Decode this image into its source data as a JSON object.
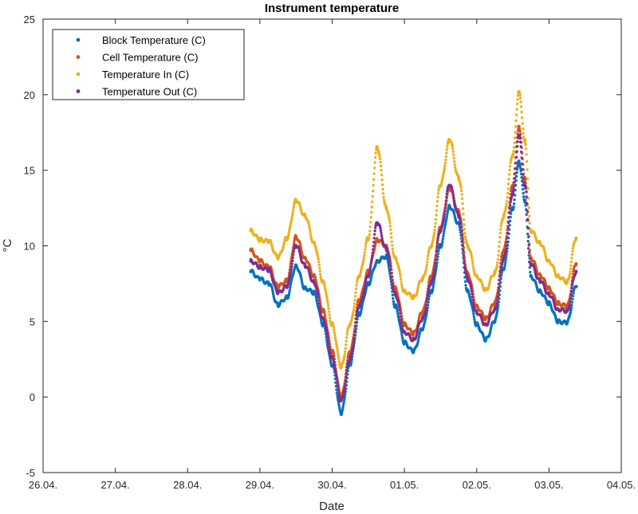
{
  "chart_data": {
    "type": "scatter",
    "title": "Instrument temperature",
    "xlabel": "Date",
    "ylabel": "°C",
    "xlim": [
      "2017-04-26",
      "2017-05-04"
    ],
    "ylim": [
      -5,
      25
    ],
    "x_ticks": [
      {
        "date": "2017-04-26",
        "label": "26.04."
      },
      {
        "date": "2017-04-27",
        "label": "27.04."
      },
      {
        "date": "2017-04-28",
        "label": "28.04."
      },
      {
        "date": "2017-04-29",
        "label": "29.04."
      },
      {
        "date": "2017-04-30",
        "label": "30.04."
      },
      {
        "date": "2017-05-01",
        "label": "01.05."
      },
      {
        "date": "2017-05-02",
        "label": "02.05."
      },
      {
        "date": "2017-05-03",
        "label": "03.05."
      },
      {
        "date": "2017-05-04",
        "label": "04.05."
      }
    ],
    "y_ticks": [
      -5,
      0,
      5,
      10,
      15,
      20,
      25
    ],
    "grid": false,
    "legend_position": "top-left",
    "series": [
      {
        "name": "Block Temperature (C)",
        "color": "#0072BD",
        "points": [
          [
            "2017-04-28 21:00",
            8.3
          ],
          [
            "2017-04-29 00:00",
            7.8
          ],
          [
            "2017-04-29 03:00",
            7.5
          ],
          [
            "2017-04-29 06:00",
            6.1
          ],
          [
            "2017-04-29 09:00",
            6.6
          ],
          [
            "2017-04-29 12:00",
            8.7
          ],
          [
            "2017-04-29 15:00",
            7.2
          ],
          [
            "2017-04-29 18:00",
            6.9
          ],
          [
            "2017-04-29 21:00",
            4.8
          ],
          [
            "2017-04-30 00:00",
            2.1
          ],
          [
            "2017-04-30 03:00",
            -1.1
          ],
          [
            "2017-04-30 06:00",
            2.2
          ],
          [
            "2017-04-30 09:00",
            5.5
          ],
          [
            "2017-04-30 12:00",
            7.5
          ],
          [
            "2017-04-30 15:00",
            9.0
          ],
          [
            "2017-04-30 18:00",
            9.3
          ],
          [
            "2017-04-30 21:00",
            6.0
          ],
          [
            "2017-05-01 00:00",
            3.6
          ],
          [
            "2017-05-01 03:00",
            3.0
          ],
          [
            "2017-05-01 06:00",
            4.5
          ],
          [
            "2017-05-01 09:00",
            7.0
          ],
          [
            "2017-05-01 12:00",
            10.0
          ],
          [
            "2017-05-01 15:00",
            12.6
          ],
          [
            "2017-05-01 18:00",
            11.5
          ],
          [
            "2017-05-01 21:00",
            7.0
          ],
          [
            "2017-05-02 00:00",
            4.8
          ],
          [
            "2017-05-02 03:00",
            3.8
          ],
          [
            "2017-05-02 06:00",
            5.0
          ],
          [
            "2017-05-02 09:00",
            8.5
          ],
          [
            "2017-05-02 12:00",
            12.5
          ],
          [
            "2017-05-02 14:00",
            15.6
          ],
          [
            "2017-05-02 16:00",
            13.0
          ],
          [
            "2017-05-02 18:00",
            8.0
          ],
          [
            "2017-05-02 21:00",
            7.0
          ],
          [
            "2017-05-03 00:00",
            6.2
          ],
          [
            "2017-05-03 03:00",
            5.0
          ],
          [
            "2017-05-03 06:00",
            4.9
          ],
          [
            "2017-05-03 09:00",
            7.3
          ]
        ]
      },
      {
        "name": "Cell Temperature (C)",
        "color": "#D95319",
        "points": [
          [
            "2017-04-28 21:00",
            9.7
          ],
          [
            "2017-04-29 00:00",
            9.0
          ],
          [
            "2017-04-29 03:00",
            8.6
          ],
          [
            "2017-04-29 06:00",
            7.3
          ],
          [
            "2017-04-29 09:00",
            7.7
          ],
          [
            "2017-04-29 12:00",
            10.6
          ],
          [
            "2017-04-29 15:00",
            9.2
          ],
          [
            "2017-04-29 18:00",
            8.0
          ],
          [
            "2017-04-29 21:00",
            5.7
          ],
          [
            "2017-04-30 00:00",
            3.0
          ],
          [
            "2017-04-30 03:00",
            0.0
          ],
          [
            "2017-04-30 06:00",
            3.0
          ],
          [
            "2017-04-30 09:00",
            6.4
          ],
          [
            "2017-04-30 12:00",
            8.3
          ],
          [
            "2017-04-30 15:00",
            10.4
          ],
          [
            "2017-04-30 18:00",
            10.0
          ],
          [
            "2017-04-30 21:00",
            7.2
          ],
          [
            "2017-05-01 00:00",
            4.8
          ],
          [
            "2017-05-01 03:00",
            4.2
          ],
          [
            "2017-05-01 06:00",
            5.6
          ],
          [
            "2017-05-01 09:00",
            8.0
          ],
          [
            "2017-05-01 12:00",
            11.2
          ],
          [
            "2017-05-01 15:00",
            13.8
          ],
          [
            "2017-05-01 18:00",
            12.3
          ],
          [
            "2017-05-01 21:00",
            8.2
          ],
          [
            "2017-05-02 00:00",
            6.0
          ],
          [
            "2017-05-02 03:00",
            5.2
          ],
          [
            "2017-05-02 06:00",
            6.2
          ],
          [
            "2017-05-02 09:00",
            9.7
          ],
          [
            "2017-05-02 12:00",
            14.0
          ],
          [
            "2017-05-02 14:00",
            17.9
          ],
          [
            "2017-05-02 16:00",
            14.5
          ],
          [
            "2017-05-02 18:00",
            9.2
          ],
          [
            "2017-05-02 21:00",
            8.1
          ],
          [
            "2017-05-03 00:00",
            7.2
          ],
          [
            "2017-05-03 03:00",
            6.2
          ],
          [
            "2017-05-03 06:00",
            6.0
          ],
          [
            "2017-05-03 09:00",
            8.8
          ]
        ]
      },
      {
        "name": "Temperature In (C)",
        "color": "#EDB120",
        "points": [
          [
            "2017-04-28 21:00",
            11.0
          ],
          [
            "2017-04-29 00:00",
            10.4
          ],
          [
            "2017-04-29 03:00",
            10.3
          ],
          [
            "2017-04-29 06:00",
            9.2
          ],
          [
            "2017-04-29 09:00",
            10.5
          ],
          [
            "2017-04-29 12:00",
            13.0
          ],
          [
            "2017-04-29 15:00",
            12.0
          ],
          [
            "2017-04-29 18:00",
            10.2
          ],
          [
            "2017-04-29 21:00",
            7.6
          ],
          [
            "2017-04-30 00:00",
            4.8
          ],
          [
            "2017-04-30 03:00",
            2.0
          ],
          [
            "2017-04-30 06:00",
            4.8
          ],
          [
            "2017-04-30 09:00",
            8.0
          ],
          [
            "2017-04-30 12:00",
            10.5
          ],
          [
            "2017-04-30 15:00",
            16.5
          ],
          [
            "2017-04-30 18:00",
            12.5
          ],
          [
            "2017-04-30 21:00",
            9.2
          ],
          [
            "2017-05-01 00:00",
            7.0
          ],
          [
            "2017-05-01 03:00",
            6.6
          ],
          [
            "2017-05-01 06:00",
            7.8
          ],
          [
            "2017-05-01 09:00",
            10.0
          ],
          [
            "2017-05-01 12:00",
            14.0
          ],
          [
            "2017-05-01 15:00",
            17.0
          ],
          [
            "2017-05-01 18:00",
            14.5
          ],
          [
            "2017-05-01 21:00",
            10.0
          ],
          [
            "2017-05-02 00:00",
            8.0
          ],
          [
            "2017-05-02 03:00",
            7.1
          ],
          [
            "2017-05-02 06:00",
            8.2
          ],
          [
            "2017-05-02 09:00",
            12.0
          ],
          [
            "2017-05-02 12:00",
            16.0
          ],
          [
            "2017-05-02 14:00",
            20.2
          ],
          [
            "2017-05-02 16:00",
            17.0
          ],
          [
            "2017-05-02 18:00",
            11.0
          ],
          [
            "2017-05-02 21:00",
            10.2
          ],
          [
            "2017-05-03 00:00",
            9.0
          ],
          [
            "2017-05-03 03:00",
            8.0
          ],
          [
            "2017-05-03 06:00",
            7.6
          ],
          [
            "2017-05-03 09:00",
            10.5
          ]
        ]
      },
      {
        "name": "Temperature Out (C)",
        "color": "#7E2F8E",
        "points": [
          [
            "2017-04-28 21:00",
            9.0
          ],
          [
            "2017-04-29 00:00",
            8.6
          ],
          [
            "2017-04-29 03:00",
            8.4
          ],
          [
            "2017-04-29 06:00",
            6.9
          ],
          [
            "2017-04-29 09:00",
            7.3
          ],
          [
            "2017-04-29 12:00",
            10.0
          ],
          [
            "2017-04-29 15:00",
            8.7
          ],
          [
            "2017-04-29 18:00",
            7.6
          ],
          [
            "2017-04-29 21:00",
            5.2
          ],
          [
            "2017-04-30 00:00",
            2.6
          ],
          [
            "2017-04-30 03:00",
            -0.2
          ],
          [
            "2017-04-30 06:00",
            2.6
          ],
          [
            "2017-04-30 09:00",
            6.0
          ],
          [
            "2017-04-30 12:00",
            8.0
          ],
          [
            "2017-04-30 15:00",
            11.5
          ],
          [
            "2017-04-30 18:00",
            9.8
          ],
          [
            "2017-04-30 21:00",
            6.8
          ],
          [
            "2017-05-01 00:00",
            4.3
          ],
          [
            "2017-05-01 03:00",
            3.8
          ],
          [
            "2017-05-01 06:00",
            5.2
          ],
          [
            "2017-05-01 09:00",
            7.6
          ],
          [
            "2017-05-01 12:00",
            11.0
          ],
          [
            "2017-05-01 15:00",
            14.0
          ],
          [
            "2017-05-01 18:00",
            12.0
          ],
          [
            "2017-05-01 21:00",
            7.8
          ],
          [
            "2017-05-02 00:00",
            5.6
          ],
          [
            "2017-05-02 03:00",
            4.8
          ],
          [
            "2017-05-02 06:00",
            5.8
          ],
          [
            "2017-05-02 09:00",
            9.2
          ],
          [
            "2017-05-02 12:00",
            13.5
          ],
          [
            "2017-05-02 14:00",
            17.3
          ],
          [
            "2017-05-02 16:00",
            14.0
          ],
          [
            "2017-05-02 18:00",
            8.8
          ],
          [
            "2017-05-02 21:00",
            7.7
          ],
          [
            "2017-05-03 00:00",
            6.8
          ],
          [
            "2017-05-03 03:00",
            5.8
          ],
          [
            "2017-05-03 06:00",
            5.7
          ],
          [
            "2017-05-03 09:00",
            8.3
          ]
        ]
      }
    ]
  }
}
